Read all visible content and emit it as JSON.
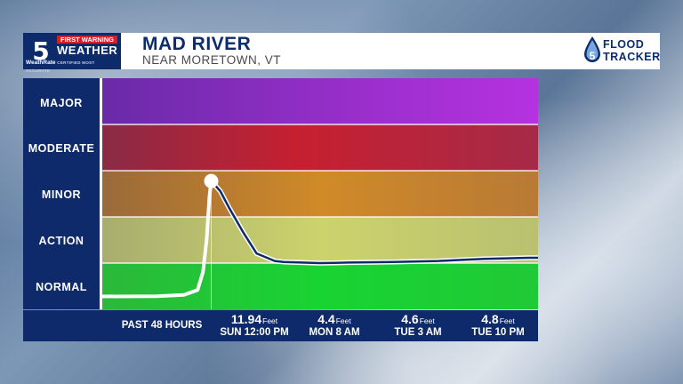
{
  "header": {
    "station": "NBC 5",
    "fw_label": "FIRST WARNING",
    "weather_label": "WEATHER",
    "weatherrate": "WeathRate",
    "certified": "CERTIFIED MOST ACCURATE",
    "title": "MAD RIVER",
    "subtitle": "NEAR MORETOWN, VT",
    "tracker_flood": "FLOOD",
    "tracker_tracker": "TRACKER"
  },
  "colors": {
    "major": "#a62fd0",
    "moderate": "#c42535",
    "minor": "#d2872a",
    "action": "#c8cc6a",
    "normal": "#1fcd34",
    "navy": "#0e2a6a"
  },
  "chart_data": {
    "type": "line",
    "title": "MAD RIVER",
    "subtitle": "NEAR MORETOWN, VT",
    "bands": [
      "MAJOR",
      "MODERATE",
      "MINOR",
      "ACTION",
      "NORMAL"
    ],
    "series": [
      {
        "values": [
          [
            0,
            1.2
          ],
          [
            6,
            1.22
          ],
          [
            9,
            1.35
          ],
          [
            10.5,
            1.8
          ],
          [
            11.1,
            3.5
          ],
          [
            11.5,
            6.5
          ],
          [
            11.8,
            10.5
          ],
          [
            12,
            11.94
          ],
          [
            13,
            11.0
          ],
          [
            14,
            9.4
          ],
          [
            15.5,
            7.2
          ],
          [
            17,
            5.2
          ],
          [
            19,
            4.5
          ],
          [
            20,
            4.4
          ],
          [
            24,
            4.3
          ],
          [
            27,
            4.35
          ],
          [
            32,
            4.4
          ],
          [
            37,
            4.5
          ],
          [
            42,
            4.7
          ],
          [
            47,
            4.8
          ],
          [
            48,
            4.8
          ]
        ]
      }
    ],
    "observed_until_hour": 12,
    "xlim": [
      0,
      48
    ],
    "ylim": [
      0,
      21.5
    ],
    "bottom_labels": {
      "past": "PAST 48 HOURS",
      "points": [
        {
          "value": "11.94",
          "unit": "Feet",
          "when": "SUN 12:00 PM"
        },
        {
          "value": "4.4",
          "unit": "Feet",
          "when": "MON 8 AM"
        },
        {
          "value": "4.6",
          "unit": "Feet",
          "when": "TUE 3 AM"
        },
        {
          "value": "4.8",
          "unit": "Feet",
          "when": "TUE 10 PM"
        }
      ]
    }
  }
}
